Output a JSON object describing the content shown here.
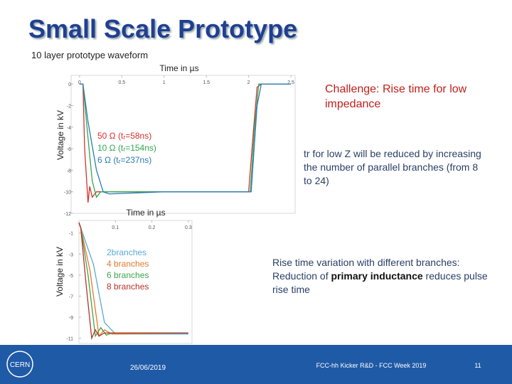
{
  "slide": {
    "title": "Small Scale Prototype",
    "subtitle": "10 layer prototype waveform",
    "challenge": "Challenge: Rise time for low impedance",
    "note_1": "tr for low Z will be reduced by increasing the number of parallel branches (from 8 to 24)",
    "note_2": [
      "Rise time variation with different branches: Reduction of ",
      "primary inductance",
      " reduces pulse rise time"
    ]
  },
  "footer": {
    "logo": "CERN",
    "date": "26/06/2019",
    "event": "FCC-hh Kicker R&D - FCC Week 2019",
    "page": "11"
  },
  "chart_data": [
    {
      "type": "line",
      "x_label": "Time in µs",
      "y_label": "Voltage in kV",
      "xlim": [
        -0.1,
        2.55
      ],
      "xticks": [
        0,
        0.5,
        1,
        1.5,
        2,
        2.5
      ],
      "ylim": [
        -12,
        0.8
      ],
      "yticks": [
        0,
        -2,
        -4,
        -6,
        -8,
        -10,
        -12
      ],
      "series": [
        {
          "name": "50 Ω (tᵣ=58ns)",
          "color": "#d6322b",
          "x": [
            0,
            0.04,
            0.06,
            0.1,
            0.12,
            0.15,
            0.2,
            0.3,
            1,
            2.0,
            2.05,
            2.1,
            2.15,
            2.5
          ],
          "values": [
            0,
            0,
            -6,
            -11,
            -9.5,
            -10.5,
            -10,
            -10,
            -10,
            -10,
            -5,
            -0.3,
            0,
            0
          ]
        },
        {
          "name": "10 Ω (tᵣ=154ns)",
          "color": "#2fa84f",
          "x": [
            0,
            0.04,
            0.1,
            0.15,
            0.2,
            0.25,
            0.3,
            1,
            2.02,
            2.07,
            2.12,
            2.5
          ],
          "values": [
            0,
            0,
            -5,
            -9,
            -10.5,
            -10,
            -10,
            -10,
            -10,
            -4,
            0,
            0
          ]
        },
        {
          "name": "6 Ω (tᵣ=237ns)",
          "color": "#2b7bb9",
          "x": [
            0,
            0.04,
            0.1,
            0.2,
            0.28,
            0.35,
            1,
            2.03,
            2.1,
            2.15,
            2.5
          ],
          "values": [
            0,
            0,
            -3.5,
            -8,
            -10,
            -10.2,
            -10,
            -10,
            -2,
            0,
            0
          ]
        }
      ]
    },
    {
      "type": "line",
      "x_label": "Time in µs",
      "y_label": "Voltage in kV",
      "xlim": [
        0,
        0.31
      ],
      "xticks": [
        0.1,
        0.2,
        0.3
      ],
      "ylim": [
        -11.5,
        0.2
      ],
      "yticks": [
        -1,
        -3,
        -5,
        -7,
        -9,
        -11
      ],
      "series": [
        {
          "name": "2branches",
          "color": "#5aaad6",
          "x": [
            0,
            0.005,
            0.04,
            0.07,
            0.1,
            0.3
          ],
          "values": [
            0,
            -0.5,
            -4,
            -9.5,
            -10.6,
            -10.6
          ]
        },
        {
          "name": "4 branches",
          "color": "#e8782a",
          "x": [
            0,
            0.005,
            0.03,
            0.055,
            0.07,
            0.09,
            0.3
          ],
          "values": [
            0,
            -0.5,
            -4.5,
            -10.8,
            -10.2,
            -10.6,
            -10.5
          ]
        },
        {
          "name": "6 branches",
          "color": "#3ea548",
          "x": [
            0,
            0.005,
            0.025,
            0.045,
            0.06,
            0.075,
            0.09,
            0.3
          ],
          "values": [
            0,
            -0.5,
            -5,
            -10.8,
            -10,
            -10.7,
            -10.5,
            -10.5
          ]
        },
        {
          "name": "8 branches",
          "color": "#b8322a",
          "x": [
            0,
            0.005,
            0.02,
            0.035,
            0.045,
            0.055,
            0.07,
            0.3
          ],
          "values": [
            0,
            -0.5,
            -6,
            -11,
            -10.2,
            -10.8,
            -10.5,
            -10.5
          ]
        }
      ]
    }
  ]
}
